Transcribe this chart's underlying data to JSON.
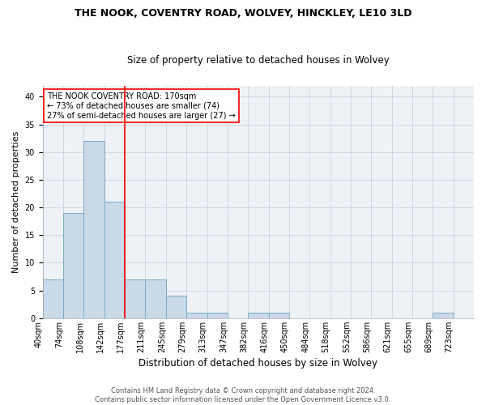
{
  "title": "THE NOOK, COVENTRY ROAD, WOLVEY, HINCKLEY, LE10 3LD",
  "subtitle": "Size of property relative to detached houses in Wolvey",
  "xlabel": "Distribution of detached houses by size in Wolvey",
  "ylabel": "Number of detached properties",
  "footnote": "Contains HM Land Registry data © Crown copyright and database right 2024.\nContains public sector information licensed under the Open Government Licence v3.0.",
  "bin_labels": [
    "40sqm",
    "74sqm",
    "108sqm",
    "142sqm",
    "177sqm",
    "211sqm",
    "245sqm",
    "279sqm",
    "313sqm",
    "347sqm",
    "382sqm",
    "416sqm",
    "450sqm",
    "484sqm",
    "518sqm",
    "552sqm",
    "586sqm",
    "621sqm",
    "655sqm",
    "689sqm",
    "723sqm"
  ],
  "bar_values": [
    7,
    19,
    32,
    21,
    7,
    7,
    4,
    1,
    1,
    0,
    1,
    1,
    0,
    0,
    0,
    0,
    0,
    0,
    0,
    1,
    0
  ],
  "bar_color": "#c9d9e8",
  "bar_edge_color": "#7aaac8",
  "bar_edge_width": 0.7,
  "property_line_x": 4,
  "property_line_color": "red",
  "ylim": [
    0,
    42
  ],
  "yticks": [
    0,
    5,
    10,
    15,
    20,
    25,
    30,
    35,
    40
  ],
  "grid_color": "#c8d4e0",
  "annotation_text": "THE NOOK COVENTRY ROAD: 170sqm\n← 73% of detached houses are smaller (74)\n27% of semi-detached houses are larger (27) →",
  "annotation_box_color": "white",
  "annotation_box_edge_color": "red",
  "title_fontsize": 9,
  "subtitle_fontsize": 8.5,
  "ylabel_fontsize": 8,
  "xlabel_fontsize": 8.5,
  "tick_fontsize": 7,
  "ann_fontsize": 7,
  "footnote_fontsize": 6
}
